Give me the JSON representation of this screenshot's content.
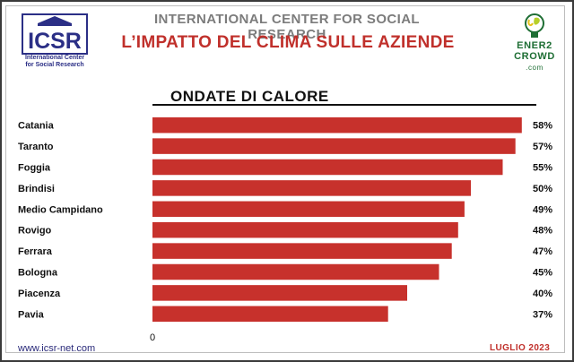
{
  "header": {
    "organization": "INTERNATIONAL CENTER FOR SOCIAL RESEARCH",
    "title": "L’IMPATTO DEL CLIMA SULLE AZIENDE",
    "logo_left": {
      "acronym": "ICSR",
      "subtitle_line1": "International Center",
      "subtitle_line2": "for Social Research",
      "icon": "temple-icon"
    },
    "logo_right": {
      "line1": "ENER2",
      "line2": "CROWD",
      "line3": ".com",
      "icon": "lightbulb-icon"
    }
  },
  "footer": {
    "url": "www.icsr-net.com",
    "date": "LUGLIO 2023"
  },
  "colors": {
    "bar": "#c7312c",
    "title_red": "#c0302b",
    "logo_blue": "#2b2f86",
    "logo_green": "#1e6e34"
  },
  "chart_data": {
    "type": "bar",
    "orientation": "horizontal",
    "title": "ONDATE DI CALORE",
    "categories": [
      "Catania",
      "Taranto",
      "Foggia",
      "Brindisi",
      "Medio Campidano",
      "Rovigo",
      "Ferrara",
      "Bologna",
      "Piacenza",
      "Pavia"
    ],
    "values": [
      58,
      57,
      55,
      50,
      49,
      48,
      47,
      45,
      40,
      37
    ],
    "value_labels": [
      "58%",
      "57%",
      "55%",
      "50%",
      "49%",
      "48%",
      "47%",
      "45%",
      "40%",
      "37%"
    ],
    "xlim": [
      0,
      60
    ],
    "x_ticks": [
      "0"
    ],
    "grid": false,
    "legend": "none"
  }
}
